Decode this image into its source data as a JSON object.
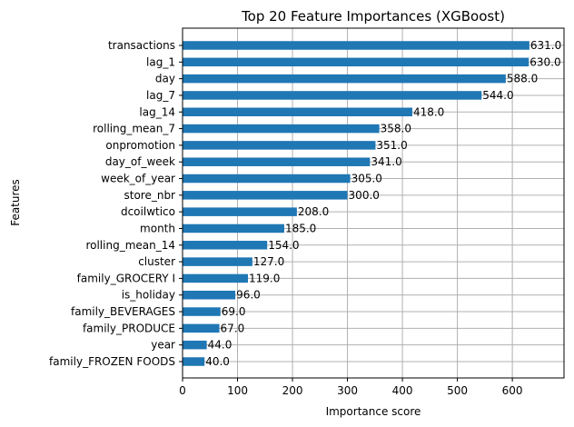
{
  "chart_data": {
    "type": "bar",
    "orientation": "horizontal",
    "title": "Top 20 Feature Importances (XGBoost)",
    "xlabel": "Importance score",
    "ylabel": "Features",
    "xlim": [
      0,
      694
    ],
    "xticks": [
      0,
      100,
      200,
      300,
      400,
      500,
      600
    ],
    "grid": true,
    "bar_color": "#1f77b4",
    "categories": [
      "transactions",
      "lag_1",
      "day",
      "lag_7",
      "lag_14",
      "rolling_mean_7",
      "onpromotion",
      "day_of_week",
      "week_of_year",
      "store_nbr",
      "dcoilwtico",
      "month",
      "rolling_mean_14",
      "cluster",
      "family_GROCERY I",
      "is_holiday",
      "family_BEVERAGES",
      "family_PRODUCE",
      "year",
      "family_FROZEN FOODS"
    ],
    "values": [
      631,
      630,
      588,
      544,
      418,
      358,
      351,
      341,
      305,
      300,
      208,
      185,
      154,
      127,
      119,
      96,
      69,
      67,
      44,
      40
    ],
    "value_labels": [
      "631.0",
      "630.0",
      "588.0",
      "544.0",
      "418.0",
      "358.0",
      "351.0",
      "341.0",
      "305.0",
      "300.0",
      "208.0",
      "185.0",
      "154.0",
      "127.0",
      "119.0",
      "96.0",
      "69.0",
      "67.0",
      "44.0",
      "40.0"
    ]
  }
}
